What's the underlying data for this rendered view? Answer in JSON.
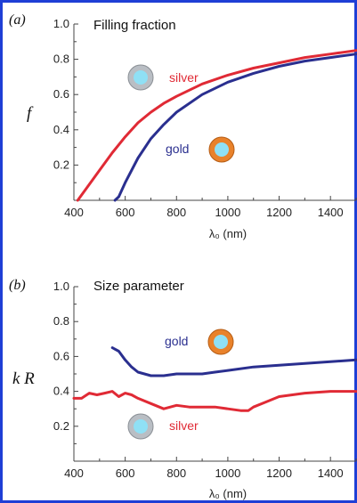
{
  "colors": {
    "frame": "#1f3fd6",
    "silver": "#e02a35",
    "gold": "#2a2f8f",
    "sphere_core": "#8fe0f5",
    "silver_shell": "#b9bec4",
    "gold_shell": "#e9822b"
  },
  "chart_data": [
    {
      "type": "line",
      "panel_label": "(a)",
      "title": "Filling fraction",
      "ylabel": "f",
      "xlabel": "λ₀ (nm)",
      "xlim": [
        400,
        1500
      ],
      "ylim": [
        0,
        1.0
      ],
      "xticks": [
        "400",
        "600",
        "800",
        "1000",
        "1200",
        "1400"
      ],
      "yticks": [
        "0.2",
        "0.4",
        "0.6",
        "0.8",
        "1.0"
      ],
      "series": [
        {
          "name": "silver",
          "color": "#e02a35",
          "x": [
            415,
            450,
            500,
            550,
            600,
            650,
            700,
            750,
            800,
            900,
            1000,
            1100,
            1200,
            1300,
            1400,
            1500
          ],
          "y": [
            0.0,
            0.07,
            0.17,
            0.27,
            0.36,
            0.44,
            0.5,
            0.55,
            0.59,
            0.66,
            0.71,
            0.75,
            0.78,
            0.81,
            0.83,
            0.85
          ]
        },
        {
          "name": "gold",
          "color": "#2a2f8f",
          "x": [
            560,
            575,
            600,
            650,
            700,
            750,
            800,
            900,
            1000,
            1100,
            1200,
            1300,
            1400,
            1500
          ],
          "y": [
            0.0,
            0.02,
            0.1,
            0.24,
            0.35,
            0.43,
            0.5,
            0.6,
            0.67,
            0.72,
            0.76,
            0.79,
            0.81,
            0.83
          ]
        }
      ],
      "annotations": [
        {
          "text": "silver",
          "color": "#e02a35"
        },
        {
          "text": "gold",
          "color": "#2a2f8f"
        }
      ]
    },
    {
      "type": "line",
      "panel_label": "(b)",
      "title": "Size parameter",
      "ylabel": "k R",
      "xlabel": "λ₀ (nm)",
      "xlim": [
        400,
        1500
      ],
      "ylim": [
        0,
        1.0
      ],
      "xticks": [
        "400",
        "600",
        "800",
        "1000",
        "1200",
        "1400"
      ],
      "yticks": [
        "0.2",
        "0.4",
        "0.6",
        "0.8",
        "1.0"
      ],
      "series": [
        {
          "name": "silver",
          "color": "#e02a35",
          "x": [
            400,
            430,
            460,
            490,
            520,
            550,
            575,
            600,
            625,
            650,
            700,
            750,
            800,
            850,
            900,
            950,
            1000,
            1050,
            1080,
            1100,
            1150,
            1200,
            1300,
            1400,
            1500
          ],
          "y": [
            0.36,
            0.36,
            0.39,
            0.38,
            0.39,
            0.4,
            0.37,
            0.39,
            0.38,
            0.36,
            0.33,
            0.3,
            0.32,
            0.31,
            0.31,
            0.31,
            0.3,
            0.29,
            0.29,
            0.31,
            0.34,
            0.37,
            0.39,
            0.4,
            0.4
          ]
        },
        {
          "name": "gold",
          "color": "#2a2f8f",
          "x": [
            550,
            575,
            600,
            625,
            650,
            700,
            750,
            800,
            850,
            900,
            950,
            1000,
            1100,
            1200,
            1300,
            1400,
            1500
          ],
          "y": [
            0.65,
            0.63,
            0.58,
            0.54,
            0.51,
            0.49,
            0.49,
            0.5,
            0.5,
            0.5,
            0.51,
            0.52,
            0.54,
            0.55,
            0.56,
            0.57,
            0.58
          ]
        }
      ],
      "annotations": [
        {
          "text": "gold",
          "color": "#2a2f8f"
        },
        {
          "text": "silver",
          "color": "#e02a35"
        }
      ]
    }
  ]
}
